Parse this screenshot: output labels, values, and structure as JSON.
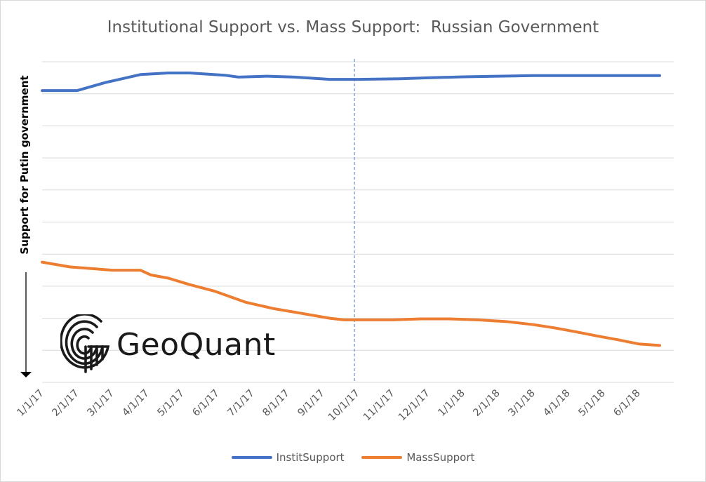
{
  "chart_data": {
    "type": "line",
    "title": "Institutional Support vs. Mass Support:  Russian Government",
    "ylabel": "Support for Putin government",
    "xlabel": "",
    "categories": [
      "1/1/17",
      "2/1/17",
      "3/1/17",
      "4/1/17",
      "5/1/17",
      "6/1/17",
      "7/1/17",
      "8/1/17",
      "9/1/17",
      "10/1/17",
      "11/1/17",
      "12/1/17",
      "1/1/18",
      "2/1/18",
      "3/1/18",
      "4/1/18",
      "5/1/18",
      "6/1/18"
    ],
    "ylim": [
      0,
      10
    ],
    "grid": true,
    "legend_position": "bottom",
    "vertical_marker_month": 8.9,
    "series": [
      {
        "name": "InstitSupport",
        "color": "#4472C4",
        "points": [
          [
            0,
            9.1
          ],
          [
            1,
            9.1
          ],
          [
            1.8,
            9.35
          ],
          [
            2.8,
            9.6
          ],
          [
            3.6,
            9.65
          ],
          [
            4.2,
            9.65
          ],
          [
            5.2,
            9.58
          ],
          [
            5.6,
            9.52
          ],
          [
            6.4,
            9.55
          ],
          [
            7.2,
            9.52
          ],
          [
            8.2,
            9.45
          ],
          [
            9,
            9.45
          ],
          [
            10.2,
            9.47
          ],
          [
            11,
            9.5
          ],
          [
            12,
            9.53
          ],
          [
            13,
            9.55
          ],
          [
            14,
            9.57
          ],
          [
            15,
            9.57
          ],
          [
            16,
            9.57
          ],
          [
            17,
            9.57
          ],
          [
            17.6,
            9.57
          ]
        ]
      },
      {
        "name": "MassSupport",
        "color": "#ED7D31",
        "points": [
          [
            0,
            3.75
          ],
          [
            0.8,
            3.6
          ],
          [
            1.4,
            3.55
          ],
          [
            2,
            3.5
          ],
          [
            2.8,
            3.5
          ],
          [
            3.1,
            3.35
          ],
          [
            3.6,
            3.25
          ],
          [
            4.2,
            3.05
          ],
          [
            4.9,
            2.85
          ],
          [
            5.8,
            2.5
          ],
          [
            6.6,
            2.3
          ],
          [
            7.4,
            2.15
          ],
          [
            8.2,
            2.0
          ],
          [
            8.6,
            1.95
          ],
          [
            9,
            1.95
          ],
          [
            10,
            1.95
          ],
          [
            10.8,
            1.98
          ],
          [
            11.6,
            1.98
          ],
          [
            12.4,
            1.95
          ],
          [
            13.2,
            1.9
          ],
          [
            14,
            1.8
          ],
          [
            14.6,
            1.7
          ],
          [
            15.2,
            1.58
          ],
          [
            15.8,
            1.45
          ],
          [
            16.4,
            1.33
          ],
          [
            17,
            1.2
          ],
          [
            17.6,
            1.15
          ]
        ]
      }
    ]
  },
  "logo": {
    "text": "GeoQuant"
  }
}
